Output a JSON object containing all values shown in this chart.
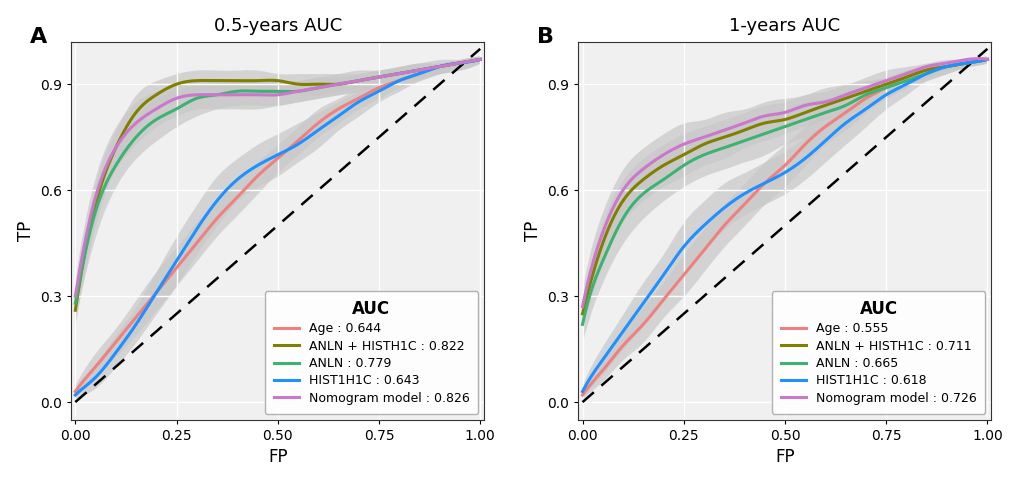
{
  "panel_A": {
    "title": "0.5-years AUC",
    "xlabel": "FP",
    "ylabel": "TP",
    "panel_label": "A",
    "curves": {
      "Age": {
        "auc": "0.644",
        "color": "#F08080",
        "fp": [
          0.0,
          0.02,
          0.05,
          0.1,
          0.15,
          0.2,
          0.25,
          0.3,
          0.35,
          0.4,
          0.45,
          0.5,
          0.55,
          0.6,
          0.65,
          0.7,
          0.75,
          0.8,
          0.85,
          0.9,
          0.95,
          1.0
        ],
        "tp": [
          0.03,
          0.06,
          0.1,
          0.17,
          0.24,
          0.31,
          0.38,
          0.45,
          0.52,
          0.58,
          0.64,
          0.69,
          0.74,
          0.79,
          0.83,
          0.86,
          0.89,
          0.91,
          0.93,
          0.95,
          0.96,
          0.97
        ],
        "tp_lower": [
          0.02,
          0.04,
          0.07,
          0.13,
          0.19,
          0.26,
          0.33,
          0.4,
          0.47,
          0.53,
          0.59,
          0.65,
          0.7,
          0.75,
          0.79,
          0.83,
          0.86,
          0.89,
          0.91,
          0.93,
          0.95,
          0.96
        ],
        "tp_upper": [
          0.05,
          0.09,
          0.14,
          0.21,
          0.29,
          0.37,
          0.44,
          0.51,
          0.57,
          0.63,
          0.68,
          0.73,
          0.78,
          0.83,
          0.86,
          0.89,
          0.91,
          0.93,
          0.95,
          0.96,
          0.97,
          0.98
        ]
      },
      "ANLN+HIST1H1C": {
        "auc": "0.822",
        "color": "#808000",
        "fp": [
          0.0,
          0.02,
          0.05,
          0.1,
          0.15,
          0.2,
          0.25,
          0.3,
          0.35,
          0.4,
          0.45,
          0.5,
          0.55,
          0.6,
          0.65,
          0.7,
          0.75,
          0.8,
          0.85,
          0.9,
          0.95,
          1.0
        ],
        "tp": [
          0.26,
          0.4,
          0.56,
          0.72,
          0.82,
          0.87,
          0.9,
          0.91,
          0.91,
          0.91,
          0.91,
          0.91,
          0.9,
          0.9,
          0.9,
          0.91,
          0.92,
          0.93,
          0.94,
          0.95,
          0.96,
          0.97
        ],
        "tp_lower": [
          0.22,
          0.35,
          0.5,
          0.67,
          0.77,
          0.83,
          0.86,
          0.88,
          0.88,
          0.88,
          0.88,
          0.88,
          0.87,
          0.87,
          0.88,
          0.89,
          0.9,
          0.91,
          0.93,
          0.94,
          0.95,
          0.96
        ],
        "tp_upper": [
          0.3,
          0.45,
          0.62,
          0.77,
          0.87,
          0.91,
          0.93,
          0.94,
          0.94,
          0.94,
          0.94,
          0.93,
          0.93,
          0.93,
          0.93,
          0.93,
          0.94,
          0.95,
          0.96,
          0.96,
          0.97,
          0.98
        ]
      },
      "ANLN": {
        "auc": "0.779",
        "color": "#3CB371",
        "fp": [
          0.0,
          0.02,
          0.05,
          0.1,
          0.15,
          0.2,
          0.25,
          0.3,
          0.35,
          0.4,
          0.45,
          0.5,
          0.55,
          0.6,
          0.65,
          0.7,
          0.75,
          0.8,
          0.85,
          0.9,
          0.95,
          1.0
        ],
        "tp": [
          0.28,
          0.4,
          0.54,
          0.67,
          0.75,
          0.8,
          0.83,
          0.86,
          0.87,
          0.88,
          0.88,
          0.88,
          0.88,
          0.89,
          0.9,
          0.91,
          0.92,
          0.93,
          0.94,
          0.95,
          0.96,
          0.97
        ],
        "tp_lower": [
          0.23,
          0.34,
          0.47,
          0.61,
          0.69,
          0.74,
          0.78,
          0.81,
          0.83,
          0.84,
          0.84,
          0.84,
          0.85,
          0.86,
          0.87,
          0.88,
          0.89,
          0.91,
          0.92,
          0.93,
          0.94,
          0.96
        ],
        "tp_upper": [
          0.33,
          0.46,
          0.61,
          0.73,
          0.81,
          0.86,
          0.88,
          0.9,
          0.91,
          0.91,
          0.91,
          0.91,
          0.91,
          0.92,
          0.92,
          0.93,
          0.94,
          0.95,
          0.96,
          0.96,
          0.97,
          0.98
        ]
      },
      "HIST1H1C": {
        "auc": "0.643",
        "color": "#1E90FF",
        "fp": [
          0.0,
          0.02,
          0.05,
          0.1,
          0.15,
          0.2,
          0.25,
          0.3,
          0.35,
          0.4,
          0.45,
          0.5,
          0.55,
          0.6,
          0.65,
          0.7,
          0.75,
          0.8,
          0.85,
          0.9,
          0.95,
          1.0
        ],
        "tp": [
          0.02,
          0.04,
          0.07,
          0.14,
          0.22,
          0.31,
          0.4,
          0.49,
          0.57,
          0.63,
          0.67,
          0.7,
          0.73,
          0.77,
          0.81,
          0.85,
          0.88,
          0.91,
          0.93,
          0.95,
          0.96,
          0.97
        ],
        "tp_lower": [
          0.01,
          0.02,
          0.04,
          0.1,
          0.17,
          0.25,
          0.33,
          0.42,
          0.5,
          0.57,
          0.61,
          0.64,
          0.68,
          0.72,
          0.77,
          0.81,
          0.85,
          0.88,
          0.91,
          0.93,
          0.95,
          0.96
        ],
        "tp_upper": [
          0.04,
          0.07,
          0.11,
          0.19,
          0.27,
          0.37,
          0.47,
          0.56,
          0.64,
          0.69,
          0.73,
          0.76,
          0.79,
          0.82,
          0.85,
          0.88,
          0.91,
          0.93,
          0.95,
          0.96,
          0.97,
          0.98
        ]
      },
      "Nomogram": {
        "auc": "0.826",
        "color": "#CC77CC",
        "fp": [
          0.0,
          0.02,
          0.05,
          0.1,
          0.15,
          0.2,
          0.25,
          0.3,
          0.35,
          0.4,
          0.45,
          0.5,
          0.55,
          0.6,
          0.65,
          0.7,
          0.75,
          0.8,
          0.85,
          0.9,
          0.95,
          1.0
        ],
        "tp": [
          0.3,
          0.43,
          0.58,
          0.72,
          0.79,
          0.83,
          0.86,
          0.87,
          0.87,
          0.87,
          0.87,
          0.87,
          0.88,
          0.89,
          0.9,
          0.91,
          0.92,
          0.93,
          0.94,
          0.95,
          0.96,
          0.97
        ],
        "tp_lower": [
          0.25,
          0.37,
          0.52,
          0.66,
          0.73,
          0.78,
          0.81,
          0.83,
          0.83,
          0.83,
          0.83,
          0.84,
          0.85,
          0.86,
          0.87,
          0.88,
          0.9,
          0.91,
          0.92,
          0.93,
          0.94,
          0.96
        ],
        "tp_upper": [
          0.35,
          0.49,
          0.64,
          0.78,
          0.85,
          0.88,
          0.9,
          0.91,
          0.91,
          0.91,
          0.91,
          0.91,
          0.91,
          0.92,
          0.93,
          0.94,
          0.94,
          0.95,
          0.96,
          0.97,
          0.97,
          0.98
        ]
      }
    }
  },
  "panel_B": {
    "title": "1-years AUC",
    "xlabel": "FP",
    "ylabel": "TP",
    "panel_label": "B",
    "curves": {
      "Age": {
        "auc": "0.555",
        "color": "#F08080",
        "fp": [
          0.0,
          0.02,
          0.05,
          0.1,
          0.15,
          0.2,
          0.25,
          0.3,
          0.35,
          0.4,
          0.45,
          0.5,
          0.55,
          0.6,
          0.65,
          0.7,
          0.75,
          0.8,
          0.85,
          0.9,
          0.95,
          1.0
        ],
        "tp": [
          0.02,
          0.05,
          0.09,
          0.16,
          0.22,
          0.29,
          0.36,
          0.43,
          0.5,
          0.56,
          0.62,
          0.67,
          0.73,
          0.78,
          0.82,
          0.86,
          0.89,
          0.92,
          0.94,
          0.95,
          0.96,
          0.97
        ],
        "tp_lower": [
          0.01,
          0.03,
          0.06,
          0.12,
          0.17,
          0.24,
          0.3,
          0.37,
          0.44,
          0.5,
          0.56,
          0.61,
          0.67,
          0.73,
          0.77,
          0.82,
          0.86,
          0.9,
          0.92,
          0.94,
          0.95,
          0.96
        ],
        "tp_upper": [
          0.03,
          0.07,
          0.12,
          0.2,
          0.27,
          0.34,
          0.42,
          0.49,
          0.56,
          0.62,
          0.68,
          0.73,
          0.78,
          0.82,
          0.86,
          0.9,
          0.92,
          0.94,
          0.95,
          0.96,
          0.97,
          0.98
        ]
      },
      "ANLN+HIST1H1C": {
        "auc": "0.711",
        "color": "#808000",
        "fp": [
          0.0,
          0.02,
          0.05,
          0.1,
          0.15,
          0.2,
          0.25,
          0.3,
          0.35,
          0.4,
          0.45,
          0.5,
          0.55,
          0.6,
          0.65,
          0.7,
          0.75,
          0.8,
          0.85,
          0.9,
          0.95,
          1.0
        ],
        "tp": [
          0.25,
          0.34,
          0.45,
          0.57,
          0.63,
          0.67,
          0.7,
          0.73,
          0.75,
          0.77,
          0.79,
          0.8,
          0.82,
          0.84,
          0.86,
          0.88,
          0.9,
          0.92,
          0.94,
          0.95,
          0.96,
          0.97
        ],
        "tp_lower": [
          0.21,
          0.29,
          0.39,
          0.51,
          0.57,
          0.61,
          0.64,
          0.67,
          0.69,
          0.72,
          0.74,
          0.76,
          0.78,
          0.8,
          0.83,
          0.86,
          0.88,
          0.9,
          0.92,
          0.94,
          0.95,
          0.96
        ],
        "tp_upper": [
          0.29,
          0.39,
          0.51,
          0.63,
          0.69,
          0.73,
          0.76,
          0.78,
          0.8,
          0.82,
          0.84,
          0.85,
          0.87,
          0.88,
          0.9,
          0.91,
          0.92,
          0.94,
          0.95,
          0.96,
          0.97,
          0.98
        ]
      },
      "ANLN": {
        "auc": "0.665",
        "color": "#3CB371",
        "fp": [
          0.0,
          0.02,
          0.05,
          0.1,
          0.15,
          0.2,
          0.25,
          0.3,
          0.35,
          0.4,
          0.45,
          0.5,
          0.55,
          0.6,
          0.65,
          0.7,
          0.75,
          0.8,
          0.85,
          0.9,
          0.95,
          1.0
        ],
        "tp": [
          0.22,
          0.31,
          0.4,
          0.52,
          0.59,
          0.63,
          0.67,
          0.7,
          0.72,
          0.74,
          0.76,
          0.78,
          0.8,
          0.82,
          0.84,
          0.87,
          0.89,
          0.91,
          0.93,
          0.95,
          0.96,
          0.97
        ],
        "tp_lower": [
          0.17,
          0.25,
          0.34,
          0.45,
          0.52,
          0.57,
          0.61,
          0.64,
          0.66,
          0.68,
          0.7,
          0.73,
          0.75,
          0.78,
          0.81,
          0.84,
          0.86,
          0.89,
          0.91,
          0.93,
          0.95,
          0.96
        ],
        "tp_upper": [
          0.27,
          0.37,
          0.46,
          0.59,
          0.66,
          0.69,
          0.73,
          0.75,
          0.77,
          0.79,
          0.81,
          0.83,
          0.85,
          0.86,
          0.88,
          0.9,
          0.91,
          0.93,
          0.95,
          0.96,
          0.97,
          0.98
        ]
      },
      "HIST1H1C": {
        "auc": "0.618",
        "color": "#1E90FF",
        "fp": [
          0.0,
          0.02,
          0.05,
          0.1,
          0.15,
          0.2,
          0.25,
          0.3,
          0.35,
          0.4,
          0.45,
          0.5,
          0.55,
          0.6,
          0.65,
          0.7,
          0.75,
          0.8,
          0.85,
          0.9,
          0.95,
          1.0
        ],
        "tp": [
          0.03,
          0.07,
          0.12,
          0.2,
          0.28,
          0.36,
          0.44,
          0.5,
          0.55,
          0.59,
          0.62,
          0.65,
          0.69,
          0.74,
          0.79,
          0.83,
          0.87,
          0.9,
          0.93,
          0.95,
          0.96,
          0.97
        ],
        "tp_lower": [
          0.01,
          0.04,
          0.08,
          0.15,
          0.22,
          0.3,
          0.37,
          0.43,
          0.49,
          0.53,
          0.56,
          0.59,
          0.63,
          0.68,
          0.73,
          0.78,
          0.83,
          0.87,
          0.91,
          0.93,
          0.95,
          0.96
        ],
        "tp_upper": [
          0.05,
          0.1,
          0.16,
          0.25,
          0.34,
          0.42,
          0.51,
          0.57,
          0.62,
          0.65,
          0.68,
          0.71,
          0.75,
          0.79,
          0.84,
          0.88,
          0.91,
          0.93,
          0.95,
          0.96,
          0.97,
          0.98
        ]
      },
      "Nomogram": {
        "auc": "0.726",
        "color": "#CC77CC",
        "fp": [
          0.0,
          0.02,
          0.05,
          0.1,
          0.15,
          0.2,
          0.25,
          0.3,
          0.35,
          0.4,
          0.45,
          0.5,
          0.55,
          0.6,
          0.65,
          0.7,
          0.75,
          0.8,
          0.85,
          0.9,
          0.95,
          1.0
        ],
        "tp": [
          0.27,
          0.37,
          0.48,
          0.6,
          0.66,
          0.7,
          0.73,
          0.75,
          0.77,
          0.79,
          0.81,
          0.82,
          0.84,
          0.85,
          0.87,
          0.89,
          0.91,
          0.93,
          0.95,
          0.96,
          0.97,
          0.97
        ],
        "tp_lower": [
          0.22,
          0.31,
          0.42,
          0.54,
          0.6,
          0.64,
          0.67,
          0.7,
          0.72,
          0.74,
          0.76,
          0.78,
          0.8,
          0.81,
          0.84,
          0.86,
          0.88,
          0.91,
          0.93,
          0.94,
          0.95,
          0.96
        ],
        "tp_upper": [
          0.32,
          0.43,
          0.54,
          0.66,
          0.72,
          0.76,
          0.79,
          0.8,
          0.82,
          0.83,
          0.85,
          0.86,
          0.87,
          0.89,
          0.9,
          0.92,
          0.94,
          0.95,
          0.96,
          0.97,
          0.97,
          0.98
        ]
      }
    }
  },
  "curve_order": [
    "Age",
    "ANLN+HIST1H1C",
    "ANLN",
    "HIST1H1C",
    "Nomogram"
  ],
  "legend_labels_A": {
    "Age": "Age : 0.644",
    "ANLN+HIST1H1C": "ANLN + HISTH1C : 0.822",
    "ANLN": "ANLN : 0.779",
    "HIST1H1C": "HIST1H1C : 0.643",
    "Nomogram": "Nomogram model : 0.826"
  },
  "legend_labels_B": {
    "Age": "Age : 0.555",
    "ANLN+HIST1H1C": "ANLN + HISTH1C : 0.711",
    "ANLN": "ANLN : 0.665",
    "HIST1H1C": "HIST1H1C : 0.618",
    "Nomogram": "Nomogram model : 0.726"
  },
  "legend_title": "AUC",
  "bg_color": "#f0f0f0",
  "grid_color": "#ffffff",
  "ci_color": "#c8c8c8",
  "ci_alpha": 0.7,
  "linewidth": 2.2,
  "ylim": [
    -0.05,
    1.02
  ],
  "xlim": [
    -0.01,
    1.01
  ],
  "xticks": [
    0.0,
    0.25,
    0.5,
    0.75,
    1.0
  ],
  "yticks": [
    0.0,
    0.3,
    0.6,
    0.9
  ]
}
